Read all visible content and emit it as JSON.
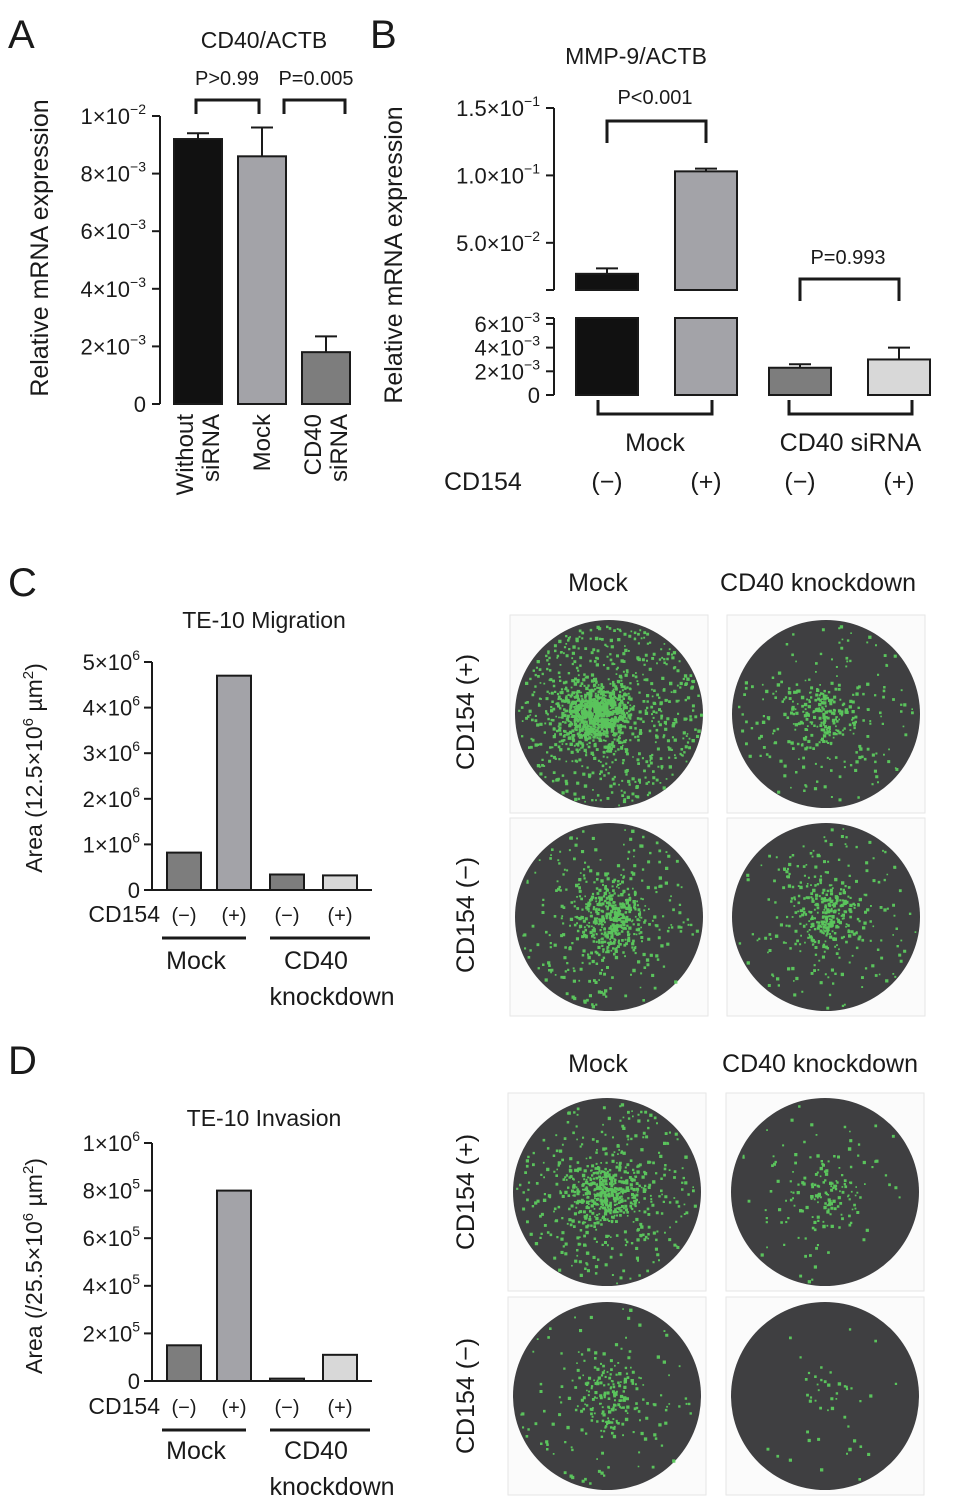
{
  "panels": {
    "a": {
      "letter": "A"
    },
    "b": {
      "letter": "B"
    },
    "c": {
      "letter": "C",
      "mock_header": "Mock",
      "cd40_header": "CD40 knockdown",
      "row_plus": "CD154 (+)",
      "row_minus": "CD154 (−)"
    },
    "d": {
      "letter": "D",
      "mock_header": "Mock",
      "cd40_header": "CD40 knockdown",
      "row_plus": "CD154 (+)",
      "row_minus": "CD154 (−)"
    }
  },
  "colors": {
    "black": "#111111",
    "mid_gray": "#a3a3a8",
    "dark_gray": "#7d7d7d",
    "light_gray": "#d8d8d8",
    "well": "#3f3f41",
    "cells": "#5dd35f"
  },
  "chart_data": [
    {
      "panel": "A",
      "type": "bar",
      "title": "CD40/ACTB",
      "ylabel": "Relative mRNA expression",
      "ylim": [
        0,
        0.01
      ],
      "ytick_labels": [
        {
          "value": 0,
          "base": "0",
          "exp": ""
        },
        {
          "value": 0.002,
          "base": "2×10",
          "exp": "−3"
        },
        {
          "value": 0.004,
          "base": "4×10",
          "exp": "−3"
        },
        {
          "value": 0.006,
          "base": "6×10",
          "exp": "−3"
        },
        {
          "value": 0.008,
          "base": "8×10",
          "exp": "−3"
        },
        {
          "value": 0.01,
          "base": "1×10",
          "exp": "−2"
        }
      ],
      "categories": [
        [
          "Without",
          "siRNA"
        ],
        [
          "Mock"
        ],
        [
          "CD40",
          "siRNA"
        ]
      ],
      "values": [
        0.0092,
        0.0086,
        0.0018
      ],
      "errors": [
        0.0002,
        0.001,
        0.00055
      ],
      "colors": [
        "#111111",
        "#a3a3a8",
        "#7d7d7d"
      ],
      "comparisons": [
        {
          "from": 0,
          "to": 1,
          "label": "P>0.99"
        },
        {
          "from": 1,
          "to": 2,
          "label": "P=0.005"
        }
      ]
    },
    {
      "panel": "B",
      "type": "bar",
      "title": "MMP-9/ACTB",
      "ylabel": "Relative mRNA expression",
      "broken_axis": true,
      "lower_range": [
        0,
        0.0065
      ],
      "upper_range": [
        0.015,
        0.15
      ],
      "lower_ticks": [
        {
          "value": 0,
          "base": "0",
          "exp": ""
        },
        {
          "value": 0.002,
          "base": "2×10",
          "exp": "−3"
        },
        {
          "value": 0.004,
          "base": "4×10",
          "exp": "−3"
        },
        {
          "value": 0.006,
          "base": "6×10",
          "exp": "−3"
        }
      ],
      "upper_ticks": [
        {
          "value": 0.05,
          "base": "5.0×10",
          "exp": "−2"
        },
        {
          "value": 0.1,
          "base": "1.0×10",
          "exp": "−1"
        },
        {
          "value": 0.15,
          "base": "1.5×10",
          "exp": "−1"
        }
      ],
      "values": [
        0.027,
        0.103,
        0.0023,
        0.003
      ],
      "errors": [
        0.004,
        0.002,
        0.0003,
        0.001
      ],
      "colors": [
        "#111111",
        "#a3a3a8",
        "#7d7d7d",
        "#d8d8d8"
      ],
      "groups": [
        {
          "label": "Mock",
          "bars": [
            0,
            1
          ]
        },
        {
          "label": "CD40 siRNA",
          "bars": [
            2,
            3
          ]
        }
      ],
      "cd154_label": "CD154",
      "cd154": [
        "(−)",
        "(+)",
        "(−)",
        "(+)"
      ],
      "comparisons": [
        {
          "from": 0,
          "to": 1,
          "label": "P<0.001"
        },
        {
          "from": 2,
          "to": 3,
          "label": "P=0.993"
        }
      ]
    },
    {
      "panel": "C",
      "type": "bar",
      "title": "TE-10 Migration",
      "ylabel": {
        "pre": "Area (12.5×10",
        "exp": "6",
        "mid": " µm",
        "exp2": "2",
        "post": ")"
      },
      "ylim": [
        0,
        5000000
      ],
      "ytick_labels": [
        {
          "value": 0,
          "base": "0",
          "exp": ""
        },
        {
          "value": 1000000,
          "base": "1×10",
          "exp": "6"
        },
        {
          "value": 2000000,
          "base": "2×10",
          "exp": "6"
        },
        {
          "value": 3000000,
          "base": "3×10",
          "exp": "6"
        },
        {
          "value": 4000000,
          "base": "4×10",
          "exp": "6"
        },
        {
          "value": 5000000,
          "base": "5×10",
          "exp": "6"
        }
      ],
      "values": [
        820000,
        4700000,
        340000,
        320000
      ],
      "colors": [
        "#7d7d7d",
        "#a3a3a8",
        "#7d7d7d",
        "#d8d8d8"
      ],
      "cd154_label": "CD154",
      "cd154": [
        "(−)",
        "(+)",
        "(−)",
        "(+)"
      ],
      "groups": [
        {
          "label": [
            "Mock"
          ],
          "bars": [
            0,
            1
          ]
        },
        {
          "label": [
            "CD40",
            "knockdown"
          ],
          "bars": [
            2,
            3
          ]
        }
      ]
    },
    {
      "panel": "D",
      "type": "bar",
      "title": "TE-10 Invasion",
      "ylabel": {
        "pre": "Area (/25.5×10",
        "exp": "6",
        "mid": " µm",
        "exp2": "2",
        "post": ")"
      },
      "ylim": [
        0,
        1000000
      ],
      "ytick_labels": [
        {
          "value": 0,
          "base": "0",
          "exp": ""
        },
        {
          "value": 200000,
          "base": "2×10",
          "exp": "5"
        },
        {
          "value": 400000,
          "base": "4×10",
          "exp": "5"
        },
        {
          "value": 600000,
          "base": "6×10",
          "exp": "5"
        },
        {
          "value": 800000,
          "base": "8×10",
          "exp": "5"
        },
        {
          "value": 1000000,
          "base": "1×10",
          "exp": "6"
        }
      ],
      "values": [
        150000,
        800000,
        10000,
        110000
      ],
      "colors": [
        "#7d7d7d",
        "#a3a3a8",
        "#7d7d7d",
        "#d8d8d8"
      ],
      "cd154_label": "CD154",
      "cd154": [
        "(−)",
        "(+)",
        "(−)",
        "(+)"
      ],
      "groups": [
        {
          "label": [
            "Mock"
          ],
          "bars": [
            0,
            1
          ]
        },
        {
          "label": [
            "CD40",
            "knockdown"
          ],
          "bars": [
            2,
            3
          ]
        }
      ]
    }
  ],
  "micrographs": [
    {
      "panel": "C",
      "condition": "Mock CD154 (+)",
      "density": 1.0
    },
    {
      "panel": "C",
      "condition": "CD40 knockdown CD154 (+)",
      "density": 0.25
    },
    {
      "panel": "C",
      "condition": "Mock CD154 (−)",
      "density": 0.45
    },
    {
      "panel": "C",
      "condition": "CD40 knockdown CD154 (−)",
      "density": 0.3
    },
    {
      "panel": "D",
      "condition": "Mock CD154 (+)",
      "density": 0.5
    },
    {
      "panel": "D",
      "condition": "CD40 knockdown CD154 (+)",
      "density": 0.12
    },
    {
      "panel": "D",
      "condition": "Mock CD154 (−)",
      "density": 0.18
    },
    {
      "panel": "D",
      "condition": "CD40 knockdown CD154 (−)",
      "density": 0.02
    }
  ]
}
